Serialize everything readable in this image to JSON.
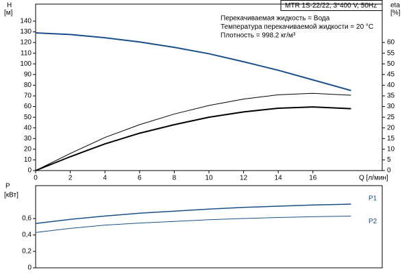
{
  "chart_data": [
    {
      "type": "line",
      "title": "MTR 1S-22/22, 3*400 V, 50Hz",
      "annotations": [
        "Перекачиваемая жидкость = Вода",
        "Температура перекачиваемой жидкости = 20 °C",
        "Плотность = 998.2 кг/м³"
      ],
      "ylabel": [
        "H",
        "[м]"
      ],
      "y2label": [
        "eta",
        "[%]"
      ],
      "xlabel": "Q [л/мин]",
      "x": [
        0,
        2,
        4,
        6,
        8,
        10,
        12,
        14,
        16,
        18.2
      ],
      "xlim": [
        0,
        20
      ],
      "xticks": [
        0,
        2,
        4,
        6,
        8,
        10,
        12,
        14,
        16
      ],
      "ylim": [
        0,
        156
      ],
      "yticks": [
        0,
        10,
        20,
        30,
        40,
        50,
        60,
        70,
        80,
        90,
        100,
        110,
        120,
        130,
        140
      ],
      "y2lim": [
        0,
        78
      ],
      "y2ticks": [
        0,
        5,
        10,
        15,
        20,
        25,
        30,
        35,
        40,
        45,
        50,
        55,
        60
      ],
      "series": [
        {
          "color": "#1a4f8a",
          "line_width": 2,
          "values": [
            129,
            127.5,
            124.5,
            120.5,
            115.5,
            109.5,
            102,
            94,
            85,
            75
          ]
        },
        {
          "color": "#000000",
          "line_width": 1,
          "axis": "y2",
          "values": [
            0,
            8,
            15.5,
            21.5,
            26.5,
            30.5,
            33.5,
            35.5,
            36.2,
            35.3
          ]
        },
        {
          "color": "#000000",
          "line_width": 2,
          "axis": "y2",
          "values": [
            0,
            6.5,
            12.5,
            17.5,
            21.5,
            25,
            27.5,
            29.2,
            29.8,
            29
          ]
        }
      ]
    },
    {
      "type": "line",
      "ylabel": [
        "P",
        "[кВт]"
      ],
      "x": [
        0,
        2,
        4,
        6,
        8,
        10,
        12,
        14,
        16,
        18.2
      ],
      "xlim": [
        0,
        20
      ],
      "ylim": [
        0,
        1
      ],
      "yticks": [
        0,
        {
          "value": 0.2,
          "label": "0,2"
        },
        {
          "value": 0.4,
          "label": "0,4"
        },
        {
          "value": 0.6,
          "label": "0,6"
        }
      ],
      "series": [
        {
          "name": "P1",
          "color": "#1a4f8a",
          "line_width": 1.5,
          "values": [
            0.54,
            0.59,
            0.63,
            0.665,
            0.69,
            0.715,
            0.735,
            0.75,
            0.765,
            0.775
          ]
        },
        {
          "name": "P2",
          "color": "#1a4f8a",
          "line_width": 1,
          "values": [
            0.43,
            0.48,
            0.52,
            0.545,
            0.565,
            0.585,
            0.6,
            0.612,
            0.622,
            0.63
          ]
        }
      ]
    }
  ]
}
